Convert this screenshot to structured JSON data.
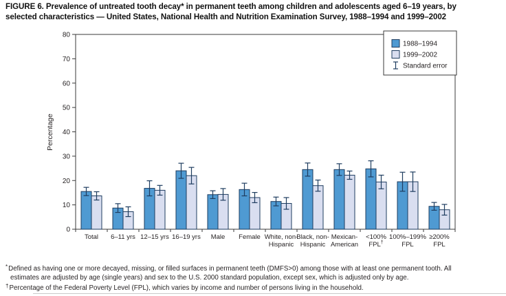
{
  "figure": {
    "title_lines": [
      "FIGURE 6. Prevalence of untreated tooth decay* in permanent teeth among children and adolescents aged 6–19 years, by",
      "selected characteristics — United States, National Health and Nutrition Examination Survey, 1988–1994 and 1999–2002"
    ],
    "footnotes": [
      {
        "marker": "*",
        "lines": [
          "Defined as having one or more decayed, missing, or filled surfaces in permanent teeth (DMFS>0) among those with at least one permanent tooth. All",
          "estimates are adjusted by age (single years) and sex to the U.S. 2000 standard population, except sex, which is adjusted only by age."
        ]
      },
      {
        "marker": "†",
        "lines": [
          "Percentage of the Federal Poverty Level (FPL), which varies by income and number of persons living in the household."
        ]
      }
    ]
  },
  "chart_data": {
    "type": "bar",
    "title": "Prevalence of untreated tooth decay in permanent teeth among children and adolescents aged 6–19 years",
    "xlabel": "",
    "ylabel": "Percentage",
    "ylim": [
      0,
      80
    ],
    "ytick_step": 10,
    "ytick_labels": [
      "0",
      "10",
      "20",
      "30",
      "40",
      "50",
      "60",
      "70",
      "80"
    ],
    "grid": false,
    "legend_position": "top-right-inside",
    "legend_note": "Standard error",
    "categories": [
      "Total",
      "6–11 yrs",
      "12–15 yrs",
      "16–19 yrs",
      "Male",
      "Female",
      "White, non-Hispanic",
      "Black, non-Hispanic",
      "Mexican-American",
      "<100% FPL†",
      "100%–199% FPL",
      "≥200% FPL"
    ],
    "category_label_lines": [
      [
        "Total"
      ],
      [
        "6–11 yrs"
      ],
      [
        "12–15 yrs"
      ],
      [
        "16–19 yrs"
      ],
      [
        "Male"
      ],
      [
        "Female"
      ],
      [
        "White, non-",
        "Hispanic"
      ],
      [
        "Black, non-",
        "Hispanic"
      ],
      [
        "Mexican-",
        "American"
      ],
      [
        "<100%",
        "FPL†"
      ],
      [
        "100%–199%",
        "FPL"
      ],
      [
        "≥200%",
        "FPL"
      ]
    ],
    "series": [
      {
        "name": "1988–1994",
        "color": "#4f9ad2",
        "values": [
          15.5,
          8.7,
          16.8,
          24.0,
          14.2,
          16.3,
          11.4,
          24.5,
          24.5,
          24.8,
          19.5,
          9.4
        ],
        "standard_errors": [
          1.7,
          1.8,
          3.1,
          3.1,
          1.6,
          2.6,
          1.8,
          2.7,
          2.4,
          3.3,
          3.9,
          1.6
        ]
      },
      {
        "name": "1999–2002",
        "color": "#d9def0",
        "values": [
          13.7,
          7.2,
          16.0,
          22.0,
          14.3,
          13.0,
          10.6,
          17.9,
          22.2,
          19.4,
          19.5,
          8.0
        ],
        "standard_errors": [
          1.7,
          2.0,
          2.0,
          3.4,
          2.4,
          2.1,
          2.4,
          2.3,
          1.7,
          2.8,
          4.0,
          2.2
        ]
      }
    ]
  },
  "colors": {
    "bar_1988_1994": "#4f9ad2",
    "bar_1999_2002": "#d9def0",
    "bar_outline": "#1e3c5f",
    "error_bar": "#1e3c5f",
    "axis_line": "#3a3a3a",
    "text": "#231f20",
    "background": "#ffffff"
  }
}
